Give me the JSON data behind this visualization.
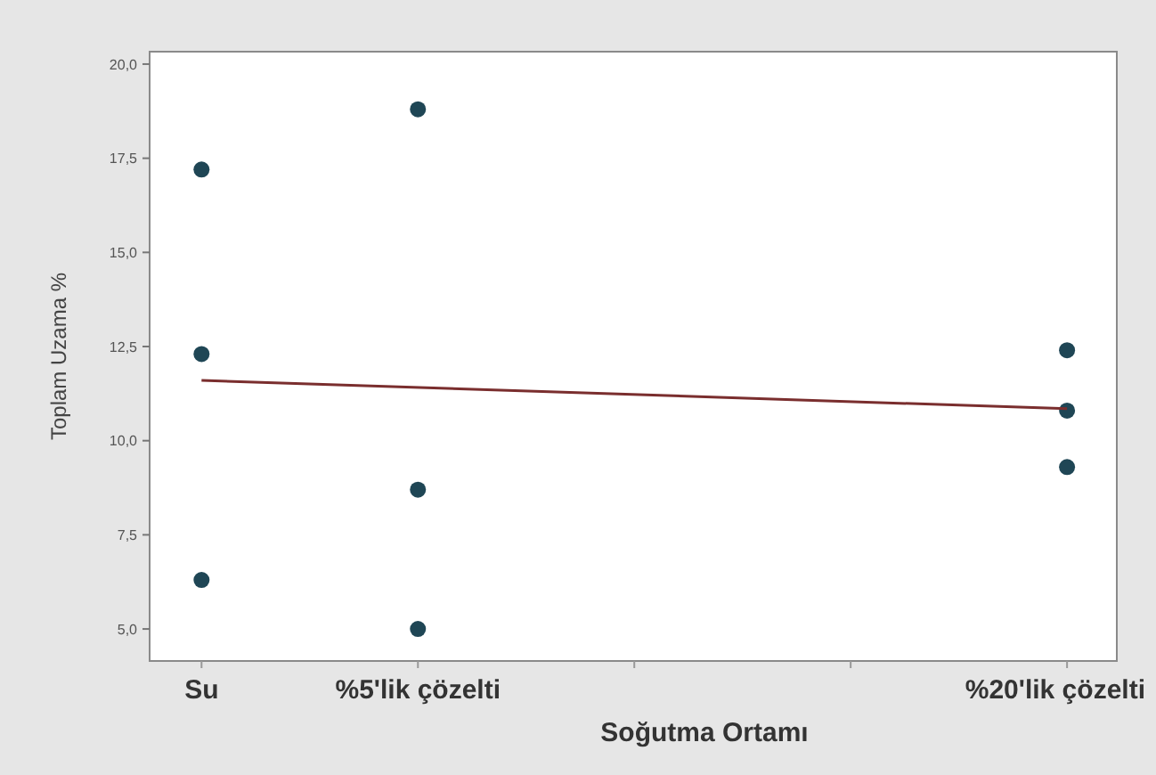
{
  "chart_data": {
    "type": "scatter",
    "xlabel": "Soğutma Ortamı",
    "ylabel": "Toplam Uzama %",
    "series": [
      {
        "color": "#1f4655",
        "x": [
          0,
          0,
          0,
          5,
          5,
          5,
          20,
          20,
          20
        ],
        "values": [
          17.2,
          12.3,
          6.3,
          18.8,
          8.7,
          5.0,
          12.4,
          10.8,
          9.3
        ],
        "marker": "circle"
      },
      {
        "type": "line",
        "color": "#7a2e2e",
        "x": [
          0,
          20
        ],
        "values": [
          11.6,
          10.85
        ],
        "marker": "none",
        "line_style": "solid"
      }
    ],
    "xlim": [
      -1.2,
      21.15
    ],
    "ylim": [
      4.15,
      20.33
    ],
    "xticks": [
      {
        "value": 0,
        "label": "Su"
      },
      {
        "value": 5,
        "label": "%5'lik çözelti"
      },
      {
        "value": 10,
        "label": null
      },
      {
        "value": 15,
        "label": null
      },
      {
        "value": 20,
        "label": "%20'lik çözelti"
      }
    ],
    "yticks": [
      {
        "value": 5,
        "label": "5,0"
      },
      {
        "value": 7.5,
        "label": "7,5"
      },
      {
        "value": 10,
        "label": "10,0"
      },
      {
        "value": 12.5,
        "label": "12,5"
      },
      {
        "value": 15,
        "label": "15,0"
      },
      {
        "value": 17.5,
        "label": "17,5"
      },
      {
        "value": 20,
        "label": "20,0"
      }
    ],
    "grid": false
  }
}
